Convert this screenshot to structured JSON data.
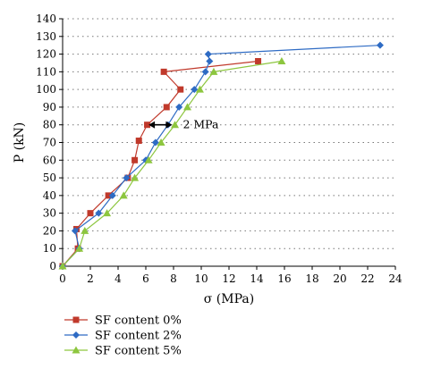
{
  "chart_data": {
    "type": "line",
    "xlabel": "σ (MPa)",
    "ylabel": "P (kN)",
    "xlim": [
      0,
      24
    ],
    "ylim": [
      0,
      140
    ],
    "xticks": [
      0,
      2,
      4,
      6,
      8,
      10,
      12,
      14,
      16,
      18,
      20,
      22,
      24
    ],
    "yticks": [
      0,
      10,
      20,
      30,
      40,
      50,
      60,
      70,
      80,
      90,
      100,
      110,
      120,
      130,
      140
    ],
    "grid": "horizontal dotted",
    "legend_position": "bottom-left",
    "annotation": {
      "text": "2 MPa",
      "x_from": 6.2,
      "x_to": 7.9,
      "y": 80
    },
    "series": [
      {
        "name": "SF content 0%",
        "marker": "square",
        "color": "#c0392b",
        "points": [
          [
            0,
            0
          ],
          [
            1.1,
            10
          ],
          [
            1.0,
            21
          ],
          [
            2.0,
            30
          ],
          [
            3.3,
            40
          ],
          [
            4.7,
            50
          ],
          [
            5.2,
            60
          ],
          [
            5.5,
            71
          ],
          [
            6.1,
            80
          ],
          [
            7.5,
            90
          ],
          [
            8.5,
            100
          ],
          [
            7.3,
            110
          ],
          [
            14.1,
            116
          ]
        ]
      },
      {
        "name": "SF content 2%",
        "marker": "diamond",
        "color": "#2e6bc4",
        "points": [
          [
            0,
            0
          ],
          [
            1.2,
            10
          ],
          [
            0.9,
            20
          ],
          [
            2.6,
            30
          ],
          [
            3.6,
            40
          ],
          [
            4.6,
            50
          ],
          [
            6.0,
            60
          ],
          [
            6.7,
            70
          ],
          [
            7.6,
            80
          ],
          [
            8.4,
            90
          ],
          [
            9.5,
            100
          ],
          [
            10.3,
            110
          ],
          [
            10.6,
            116
          ],
          [
            10.5,
            120
          ],
          [
            22.9,
            125
          ]
        ]
      },
      {
        "name": "SF content 5%",
        "marker": "triangle",
        "color": "#8dc63f",
        "points": [
          [
            0,
            0
          ],
          [
            1.2,
            10
          ],
          [
            1.6,
            20
          ],
          [
            3.2,
            30
          ],
          [
            4.4,
            40
          ],
          [
            5.2,
            50
          ],
          [
            6.2,
            60
          ],
          [
            7.1,
            70
          ],
          [
            8.1,
            80
          ],
          [
            9.0,
            90
          ],
          [
            9.9,
            100
          ],
          [
            10.9,
            110
          ],
          [
            15.8,
            116
          ]
        ]
      }
    ]
  }
}
